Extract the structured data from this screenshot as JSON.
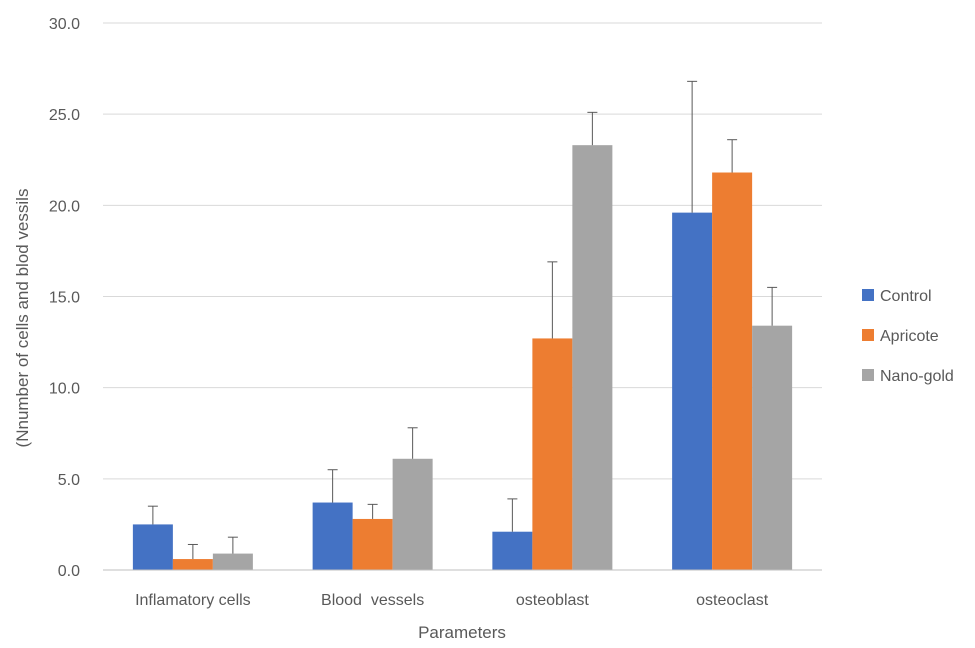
{
  "chart_data": {
    "type": "bar",
    "title": "",
    "xlabel": "Parameters",
    "ylabel": "(Nnumber of cells and blod vessils",
    "ylim": [
      0,
      30
    ],
    "yticks": [
      "0.0",
      "5.0",
      "10.0",
      "15.0",
      "20.0",
      "25.0",
      "30.0"
    ],
    "grid": true,
    "legend_position": "right",
    "categories": [
      "Inflamatory cells",
      "Blood  vessels",
      "osteoblast",
      "osteoclast"
    ],
    "series": [
      {
        "name": "Control",
        "color": "#4472C4",
        "values": [
          2.5,
          3.7,
          2.1,
          19.6
        ],
        "errors": [
          1.0,
          1.8,
          1.8,
          7.2
        ]
      },
      {
        "name": "Apricote",
        "color": "#ED7D31",
        "values": [
          0.6,
          2.8,
          12.7,
          21.8
        ],
        "errors": [
          0.8,
          0.8,
          4.2,
          1.8
        ]
      },
      {
        "name": "Nano-gold",
        "color": "#A5A5A5",
        "values": [
          0.9,
          6.1,
          23.3,
          13.4
        ],
        "errors": [
          0.9,
          1.7,
          1.8,
          2.1
        ]
      }
    ]
  }
}
